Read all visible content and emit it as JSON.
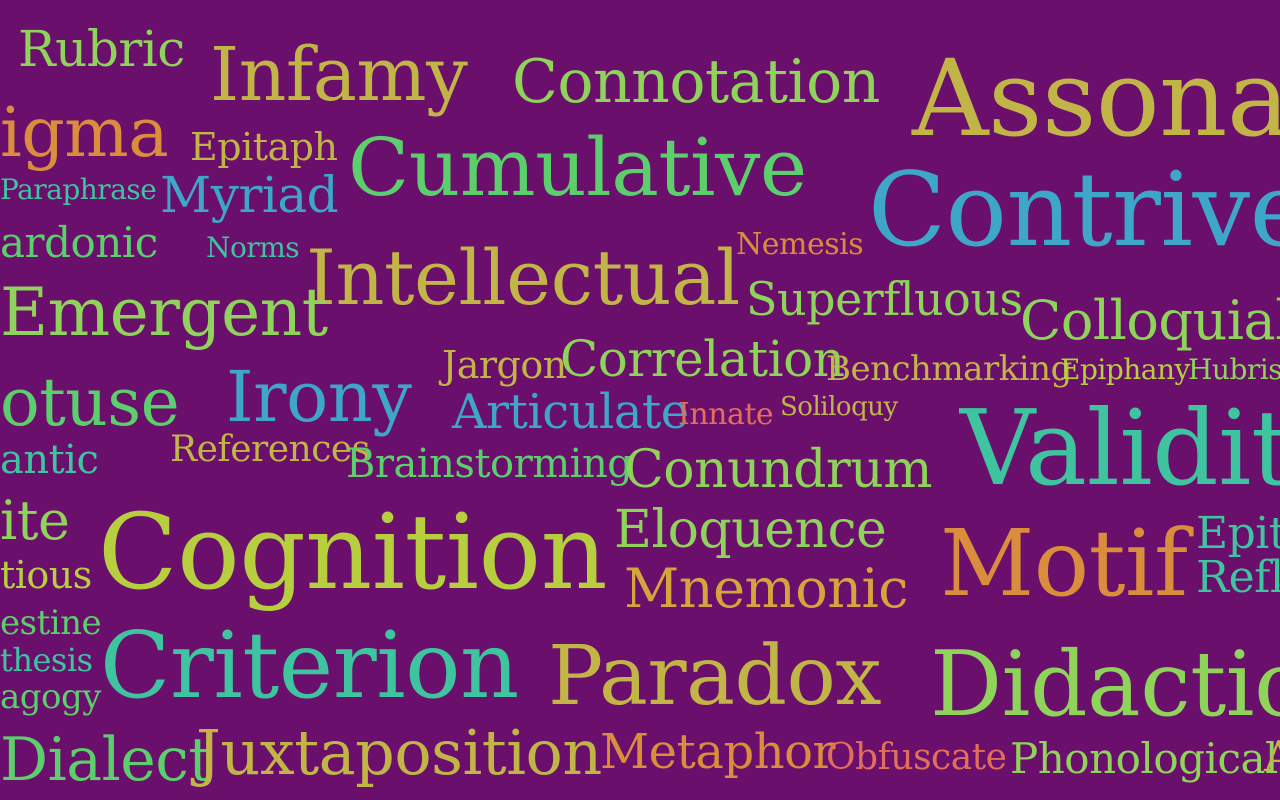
{
  "colors": {
    "background": "#6a0f6b",
    "yellow_green": "#b7cf3e",
    "olive": "#c2b548",
    "light_green": "#8ed35a",
    "green": "#5ccf6d",
    "teal": "#3fc4a0",
    "blue": "#3ea6c8",
    "orange": "#d98d3d",
    "coral": "#e0705a",
    "gold": "#d5a43c"
  },
  "words": [
    {
      "text": "Rubric",
      "color": "light_green"
    },
    {
      "text": "Infamy",
      "color": "olive"
    },
    {
      "text": "Connotation",
      "color": "light_green"
    },
    {
      "text": "Assonan",
      "color": "olive"
    },
    {
      "text": "igma",
      "color": "orange"
    },
    {
      "text": "Epitaph",
      "color": "olive"
    },
    {
      "text": "Cumulative",
      "color": "green"
    },
    {
      "text": "Paraphrase",
      "color": "teal"
    },
    {
      "text": "Myriad",
      "color": "blue"
    },
    {
      "text": "Contrived",
      "color": "blue"
    },
    {
      "text": "ardonic",
      "color": "green"
    },
    {
      "text": "Norms",
      "color": "teal"
    },
    {
      "text": "Nemesis",
      "color": "orange"
    },
    {
      "text": "Intellectual",
      "color": "olive"
    },
    {
      "text": "Superfluous",
      "color": "light_green"
    },
    {
      "text": "Emergent",
      "color": "light_green"
    },
    {
      "text": "Colloquial",
      "color": "light_green"
    },
    {
      "text": "Jargon",
      "color": "olive"
    },
    {
      "text": "Correlation",
      "color": "light_green"
    },
    {
      "text": "Benchmarking",
      "color": "olive"
    },
    {
      "text": "Epiphany",
      "color": "yellow_green"
    },
    {
      "text": "Hubris",
      "color": "light_green"
    },
    {
      "text": "otuse",
      "color": "green"
    },
    {
      "text": "Irony",
      "color": "blue"
    },
    {
      "text": "Articulate",
      "color": "blue"
    },
    {
      "text": "Innate",
      "color": "coral"
    },
    {
      "text": "Soliloquy",
      "color": "olive"
    },
    {
      "text": "Validity",
      "color": "teal"
    },
    {
      "text": "antic",
      "color": "teal"
    },
    {
      "text": "References",
      "color": "olive"
    },
    {
      "text": "Brainstorming",
      "color": "green"
    },
    {
      "text": "Conundrum",
      "color": "light_green"
    },
    {
      "text": "ite",
      "color": "light_green"
    },
    {
      "text": "Cognition",
      "color": "yellow_green"
    },
    {
      "text": "Eloquence",
      "color": "light_green"
    },
    {
      "text": "Motif",
      "color": "orange"
    },
    {
      "text": "Epit",
      "color": "teal"
    },
    {
      "text": "tious",
      "color": "yellow_green"
    },
    {
      "text": "Mnemonic",
      "color": "gold"
    },
    {
      "text": "Refl",
      "color": "teal"
    },
    {
      "text": "estine",
      "color": "green"
    },
    {
      "text": "thesis",
      "color": "teal"
    },
    {
      "text": "Criterion",
      "color": "teal"
    },
    {
      "text": "Paradox",
      "color": "olive"
    },
    {
      "text": "Didactic",
      "color": "light_green"
    },
    {
      "text": "agogy",
      "color": "green"
    },
    {
      "text": "Dialect",
      "color": "green"
    },
    {
      "text": "Juxtaposition",
      "color": "olive"
    },
    {
      "text": "Metaphor",
      "color": "orange"
    },
    {
      "text": "Obfuscate",
      "color": "coral"
    },
    {
      "text": "Phonological",
      "color": "light_green"
    },
    {
      "text": "A",
      "color": "olive"
    }
  ]
}
